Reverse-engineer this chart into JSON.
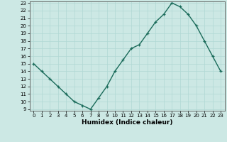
{
  "x": [
    0,
    1,
    2,
    3,
    4,
    5,
    6,
    7,
    8,
    9,
    10,
    11,
    12,
    13,
    14,
    15,
    16,
    17,
    18,
    19,
    20,
    21,
    22,
    23
  ],
  "y": [
    15,
    14,
    13,
    12,
    11,
    10,
    9.5,
    9,
    10.5,
    12,
    14,
    15.5,
    17,
    17.5,
    19,
    20.5,
    21.5,
    23,
    22.5,
    21.5,
    20,
    18,
    16,
    14
  ],
  "xlabel": "Humidex (Indice chaleur)",
  "ylim_min": 9,
  "ylim_max": 23,
  "xlim_min": -0.5,
  "xlim_max": 23.5,
  "yticks": [
    9,
    10,
    11,
    12,
    13,
    14,
    15,
    16,
    17,
    18,
    19,
    20,
    21,
    22,
    23
  ],
  "xticks": [
    0,
    1,
    2,
    3,
    4,
    5,
    6,
    7,
    8,
    9,
    10,
    11,
    12,
    13,
    14,
    15,
    16,
    17,
    18,
    19,
    20,
    21,
    22,
    23
  ],
  "line_color": "#1a6b5a",
  "marker": "+",
  "bg_color": "#cce8e4",
  "grid_color": "#b0d8d4",
  "tick_fontsize": 5,
  "xlabel_fontsize": 6.5,
  "xlabel_fontweight": "bold",
  "linewidth": 1.0,
  "markersize": 3.5,
  "markeredgewidth": 0.9
}
